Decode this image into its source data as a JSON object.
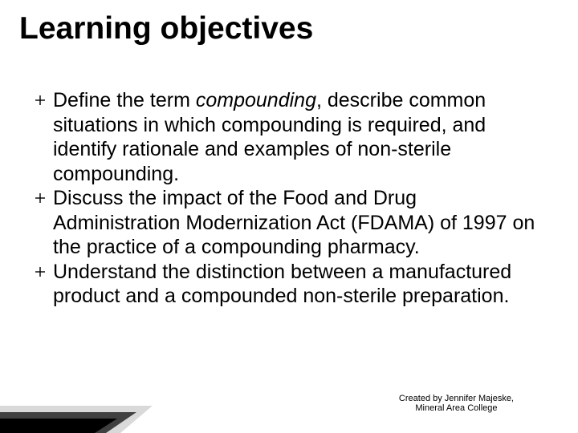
{
  "title": {
    "text": "Learning objectives",
    "fontsize": 39,
    "color": "#000000"
  },
  "body_fontsize": 25,
  "body_color": "#000000",
  "bullet_color": "#000000",
  "items": [
    {
      "segments": [
        {
          "text": "Define the term ",
          "italic": false
        },
        {
          "text": "compounding",
          "italic": true
        },
        {
          "text": ", describe common situations in which compounding is required, and identify rationale and examples of non-sterile compounding.",
          "italic": false
        }
      ]
    },
    {
      "segments": [
        {
          "text": "Discuss the impact of the Food and Drug Administration Modernization Act (FDAMA) of 1997 on the practice of a compounding pharmacy.",
          "italic": false
        }
      ]
    },
    {
      "segments": [
        {
          "text": "Understand the distinction between a manufactured product and a compounded non-sterile preparation.",
          "italic": false
        }
      ]
    }
  ],
  "footer": {
    "line1": "Created by Jennifer Majeske,",
    "line2": "Mineral Area College",
    "fontsize": 11,
    "color": "#000000"
  },
  "accent": {
    "shape1_fill": "#d9d9d9",
    "shape2_fill": "#404040",
    "shape3_fill": "#000000"
  }
}
